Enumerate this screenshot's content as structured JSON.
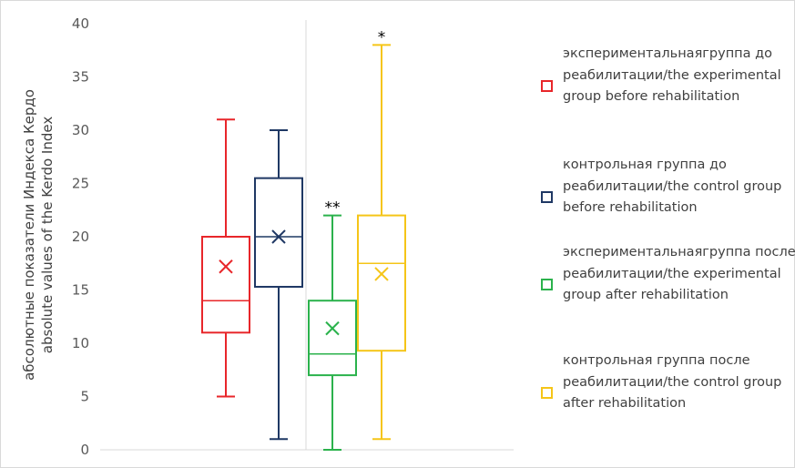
{
  "chart_data": {
    "type": "box",
    "ylabel_line1": "абсолютные показатели Индекса Кердо",
    "ylabel_line2": "absolute values of the Kerdo Index",
    "ylim": [
      0,
      40
    ],
    "yticks": [
      "0",
      "5",
      "10",
      "15",
      "20",
      "25",
      "30",
      "35",
      "40"
    ],
    "grid": "none",
    "legend_position": "right",
    "groups": [
      {
        "name": "экспериментальнаягруппа до реабилитации/the experimental group before rehabilitation",
        "color": "#e8262a",
        "min": 5,
        "q1": 11,
        "median": 14,
        "q3": 20,
        "max": 31,
        "mean": 17.2,
        "annotation": ""
      },
      {
        "name": "контрольная группа до реабилитации/the control group before rehabilitation",
        "color": "#1f3864",
        "min": 1,
        "q1": 15.3,
        "median": 20,
        "q3": 25.5,
        "max": 30,
        "mean": 20,
        "annotation": ""
      },
      {
        "name": "экспериментальнаягруппа после реабилитации/the experimental group after rehabilitation",
        "color": "#2bb24c",
        "min": 0,
        "q1": 7,
        "median": 9,
        "q3": 14,
        "max": 22,
        "mean": 11.4,
        "annotation": "**"
      },
      {
        "name": "контрольная группа после реабилитации/the control group after rehabilitation",
        "color": "#f5c518",
        "min": 1,
        "q1": 9.3,
        "median": 17.5,
        "q3": 22,
        "max": 38,
        "mean": 16.5,
        "annotation": "*"
      }
    ]
  }
}
